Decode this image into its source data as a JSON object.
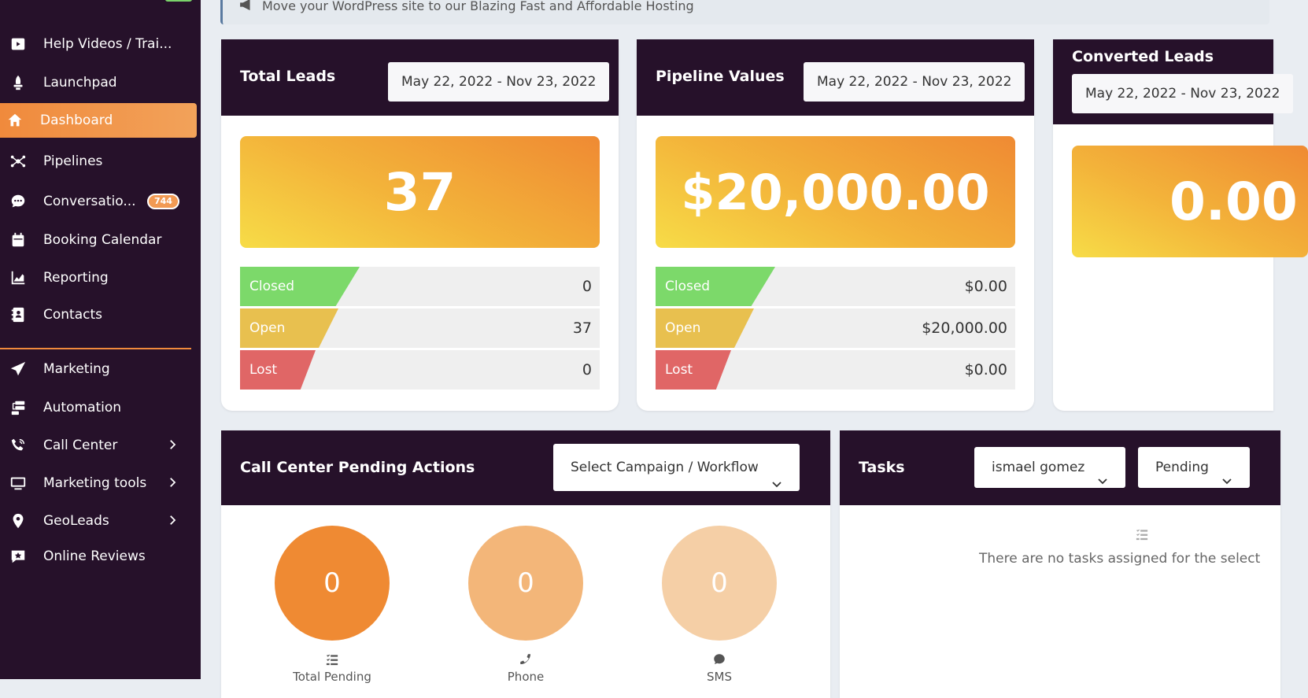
{
  "sidebar": {
    "items": [
      {
        "label": "Help Videos / Trai...",
        "icon": "youtube-icon"
      },
      {
        "label": "Launchpad",
        "icon": "rocket-icon"
      },
      {
        "label": "Dashboard",
        "icon": "home-icon",
        "active": true
      },
      {
        "label": "Pipelines",
        "icon": "pipelines-icon"
      },
      {
        "label": "Conversatio...",
        "icon": "chat-icon",
        "badge": "744"
      },
      {
        "label": "Booking Calendar",
        "icon": "calendar-icon"
      },
      {
        "label": "Reporting",
        "icon": "chart-icon"
      },
      {
        "label": "Contacts",
        "icon": "contacts-icon"
      },
      {
        "label": "Marketing",
        "icon": "paper-plane-icon"
      },
      {
        "label": "Automation",
        "icon": "automation-icon"
      },
      {
        "label": "Call Center",
        "icon": "phone-volume-icon",
        "has_submenu": true
      },
      {
        "label": "Marketing tools",
        "icon": "monitor-icon",
        "has_submenu": true
      },
      {
        "label": "GeoLeads",
        "icon": "map-pin-icon",
        "has_submenu": true
      },
      {
        "label": "Online Reviews",
        "icon": "review-star-icon"
      }
    ]
  },
  "banner": {
    "text": "Move your WordPress site to our Blazing Fast and Affordable Hosting",
    "icon": "megaphone-icon"
  },
  "total_leads": {
    "title": "Total Leads",
    "date_range": "May 22, 2022 - Nov 23, 2022",
    "value": "37",
    "rows": [
      {
        "label": "Closed",
        "value": "0"
      },
      {
        "label": "Open",
        "value": "37"
      },
      {
        "label": "Lost",
        "value": "0"
      }
    ]
  },
  "pipeline_values": {
    "title": "Pipeline Values",
    "date_range": "May 22, 2022 - Nov 23, 2022",
    "value": "$20,000.00",
    "rows": [
      {
        "label": "Closed",
        "value": "$0.00"
      },
      {
        "label": "Open",
        "value": "$20,000.00"
      },
      {
        "label": "Lost",
        "value": "$0.00"
      }
    ]
  },
  "converted_leads": {
    "title": "Converted Leads",
    "date_range": "May 22, 2022 - Nov 23, 2022",
    "value": "0.00"
  },
  "call_center": {
    "title": "Call Center Pending Actions",
    "select_label": "Select Campaign / Workflow",
    "circles": [
      {
        "value": "0",
        "label": "Total Pending",
        "icon": "task-list-icon",
        "color": "#ef8a33"
      },
      {
        "value": "0",
        "label": "Phone",
        "icon": "phone-icon",
        "color": "#f3b679"
      },
      {
        "value": "0",
        "label": "SMS",
        "icon": "sms-icon",
        "color": "#f5cfa6"
      }
    ]
  },
  "tasks": {
    "title": "Tasks",
    "assignee": "ismael gomez",
    "status": "Pending",
    "empty_message": "There are no tasks assigned for the select",
    "empty_icon": "task-list-icon"
  },
  "colors": {
    "sidebar_bg": "#26112a",
    "accent": "#f08a3c",
    "closed": "#7cd96a",
    "open": "#e8c04f",
    "lost": "#e06666"
  }
}
